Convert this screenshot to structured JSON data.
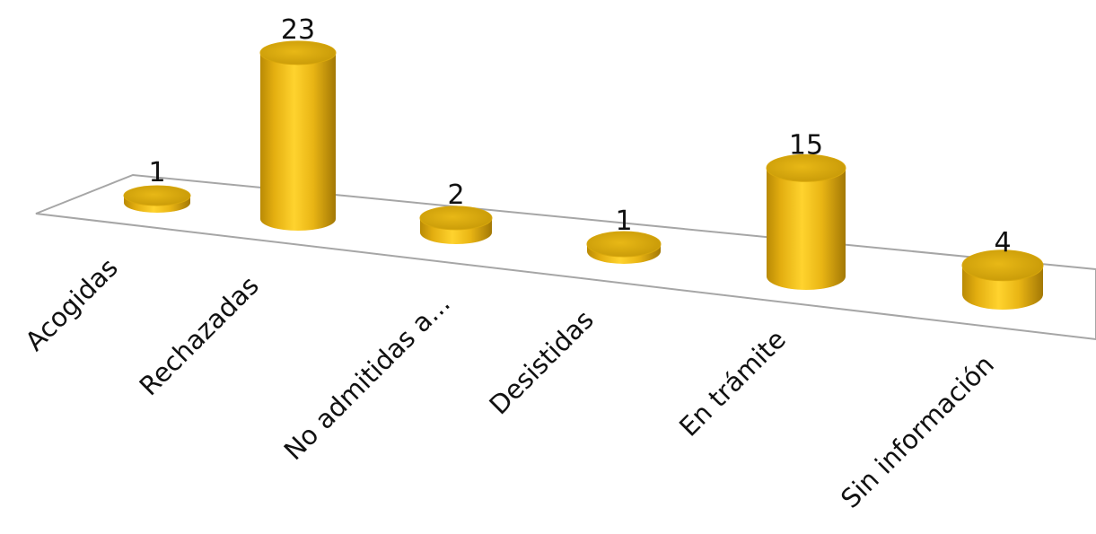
{
  "chart_data": {
    "type": "bar",
    "style": "3d-cylinder",
    "title": "",
    "xlabel": "",
    "ylabel": "",
    "categories": [
      "Acogidas",
      "Rechazadas",
      "No admitidas a...",
      "Desistidas",
      "En trámite",
      "Sin información"
    ],
    "values": [
      1,
      23,
      2,
      1,
      15,
      4
    ],
    "data_labels": [
      "1",
      "23",
      "2",
      "1",
      "15",
      "4"
    ],
    "ylim": [
      0,
      23
    ],
    "grid": false,
    "legend": "none",
    "colors": {
      "bar": "#F2C21E",
      "bar_dark": "#B88A06",
      "bar_light": "#FFE15A",
      "floor_edge": "#A6A6A6"
    }
  }
}
